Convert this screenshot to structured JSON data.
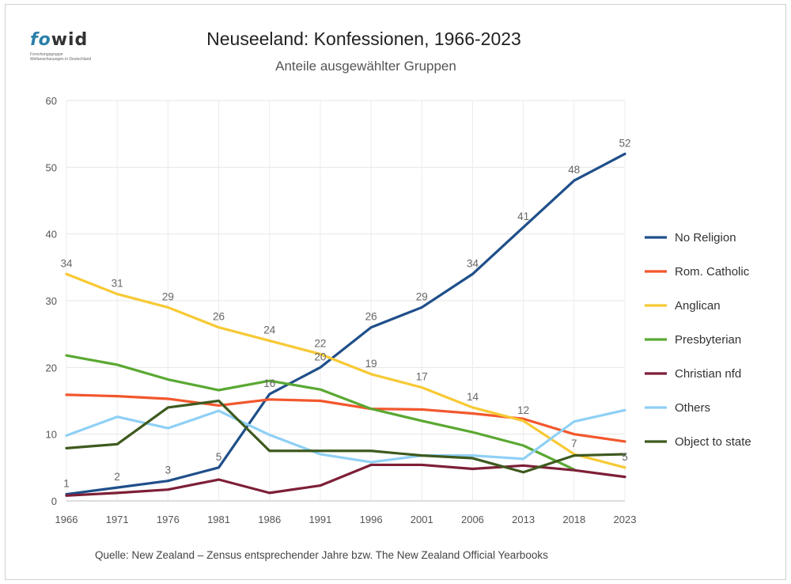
{
  "header": {
    "logo_text_a": "fo",
    "logo_text_b": "wid",
    "logo_sub": "Forschungsgruppe Weltanschauungen in Deutschland",
    "title": "Neuseeland: Konfessionen, 1966-2023",
    "subtitle": "Anteile ausgewählter Gruppen"
  },
  "footer": {
    "source": "Quelle: New Zealand – Zensus entsprechender Jahre bzw. The New Zealand Official Yearbooks"
  },
  "chart_data": {
    "type": "line",
    "title": "Neuseeland: Konfessionen, 1966-2023",
    "subtitle": "Anteile ausgewählter Gruppen",
    "xlabel": "",
    "ylabel": "",
    "categories": [
      "1966",
      "1971",
      "1976",
      "1981",
      "1986",
      "1991",
      "1996",
      "2001",
      "2006",
      "2013",
      "2018",
      "2023"
    ],
    "ylim": [
      0,
      60
    ],
    "yticks": [
      0,
      10,
      20,
      30,
      40,
      50,
      60
    ],
    "grid": true,
    "legend_position": "right",
    "series": [
      {
        "name": "No Religion",
        "color": "#1f4f8a",
        "values": [
          1,
          2,
          3,
          5,
          16,
          20,
          26,
          29,
          34,
          41,
          48,
          52
        ],
        "labels": [
          "1",
          "2",
          "3",
          "5",
          "16",
          "20",
          "26",
          "29",
          "34",
          "41",
          "48",
          "52"
        ]
      },
      {
        "name": "Rom. Catholic",
        "color": "#f2572d",
        "values": [
          15.9,
          15.7,
          15.3,
          14.3,
          15.2,
          15,
          13.8,
          13.7,
          13.1,
          12.3,
          10,
          8.9
        ],
        "labels": []
      },
      {
        "name": "Anglican",
        "color": "#f7c934",
        "values": [
          34,
          31,
          29,
          26,
          24,
          22,
          19,
          17,
          14,
          12,
          7,
          5
        ],
        "labels": [
          "34",
          "31",
          "29",
          "26",
          "24",
          "22",
          "19",
          "17",
          "14",
          "12",
          "7",
          "5"
        ]
      },
      {
        "name": "Presbyterian",
        "color": "#5aa832",
        "values": [
          21.8,
          20.4,
          18.2,
          16.6,
          18,
          16.7,
          13.8,
          12,
          10.3,
          8.3,
          4.7,
          null
        ],
        "labels": []
      },
      {
        "name": "Christian nfd",
        "color": "#7d1f36",
        "values": [
          0.8,
          1.2,
          1.7,
          3.2,
          1.2,
          2.3,
          5.4,
          5.4,
          4.8,
          5.3,
          4.6,
          3.6
        ],
        "labels": []
      },
      {
        "name": "Others",
        "color": "#8fd0f5",
        "values": [
          9.8,
          12.6,
          10.9,
          13.5,
          9.9,
          7,
          5.8,
          6.8,
          6.8,
          6.3,
          11.9,
          13.6
        ],
        "labels": []
      },
      {
        "name": "Object to state",
        "color": "#3e5a1e",
        "values": [
          7.9,
          8.5,
          14,
          15,
          7.5,
          7.5,
          7.5,
          6.8,
          6.4,
          4.3,
          6.8,
          7
        ],
        "labels": []
      }
    ]
  }
}
